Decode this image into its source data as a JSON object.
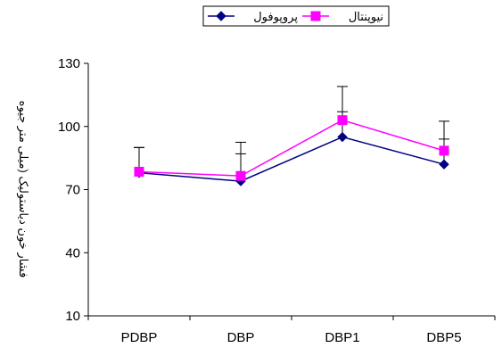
{
  "chart_data": {
    "type": "line",
    "title": "",
    "xlabel": "",
    "ylabel": "فشار خون دیاستولیک (میلی متر جیوه",
    "categories": [
      "PDBP",
      "DBP",
      "DBP1",
      "DBP5"
    ],
    "ylim": [
      10,
      130
    ],
    "yticks": [
      10,
      40,
      70,
      100,
      130
    ],
    "grid": false,
    "legend_position": "top",
    "series": [
      {
        "name": "پروپوفول",
        "color": "#000080",
        "marker": "diamond",
        "values": [
          78,
          74,
          95,
          82
        ],
        "error_plus": [
          12,
          13,
          12,
          12
        ]
      },
      {
        "name": "نیوپنتال",
        "color": "#ff00ff",
        "marker": "square",
        "values": [
          78.5,
          76.5,
          103,
          88.5
        ],
        "error_plus": [
          11.5,
          16,
          16,
          14
        ]
      }
    ]
  }
}
